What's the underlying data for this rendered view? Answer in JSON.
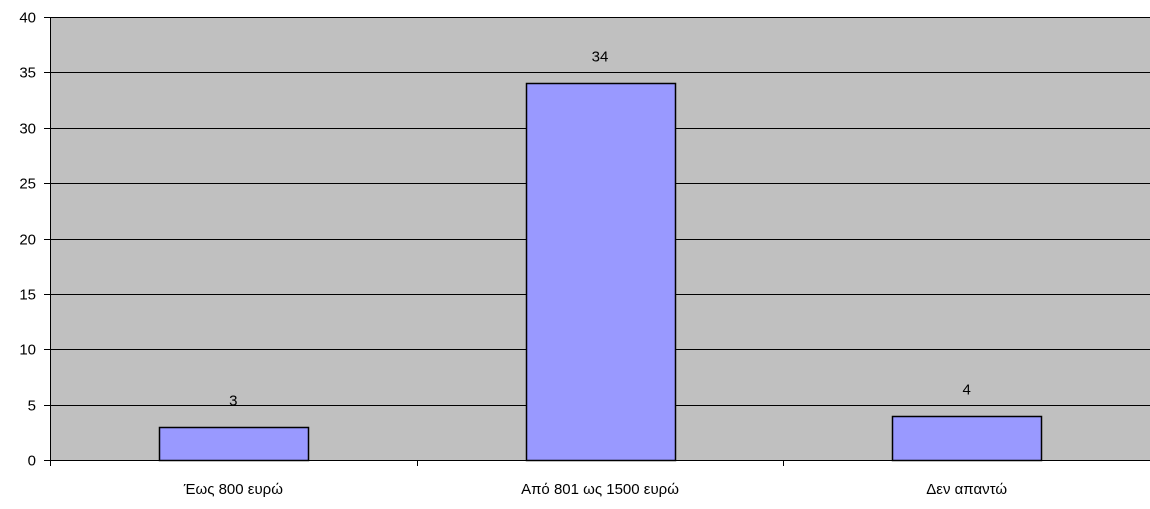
{
  "chart_data": {
    "type": "bar",
    "categories": [
      "Έως 800 ευρώ",
      "Από 801 ως 1500 ευρώ",
      "Δεν απαντώ"
    ],
    "values": [
      3,
      34,
      4
    ],
    "data_labels": [
      "3",
      "34",
      "4"
    ],
    "title": "",
    "xlabel": "",
    "ylabel": "",
    "ylim": [
      0,
      40
    ],
    "yticks": [
      "0",
      "5",
      "10",
      "15",
      "20",
      "25",
      "30",
      "35",
      "40"
    ],
    "grid": true,
    "legend": "none",
    "colors": {
      "plot_background": "#c0c0c0",
      "bar_fill": "#9999ff",
      "bar_stroke": "#000000",
      "gridline": "#000000"
    }
  }
}
